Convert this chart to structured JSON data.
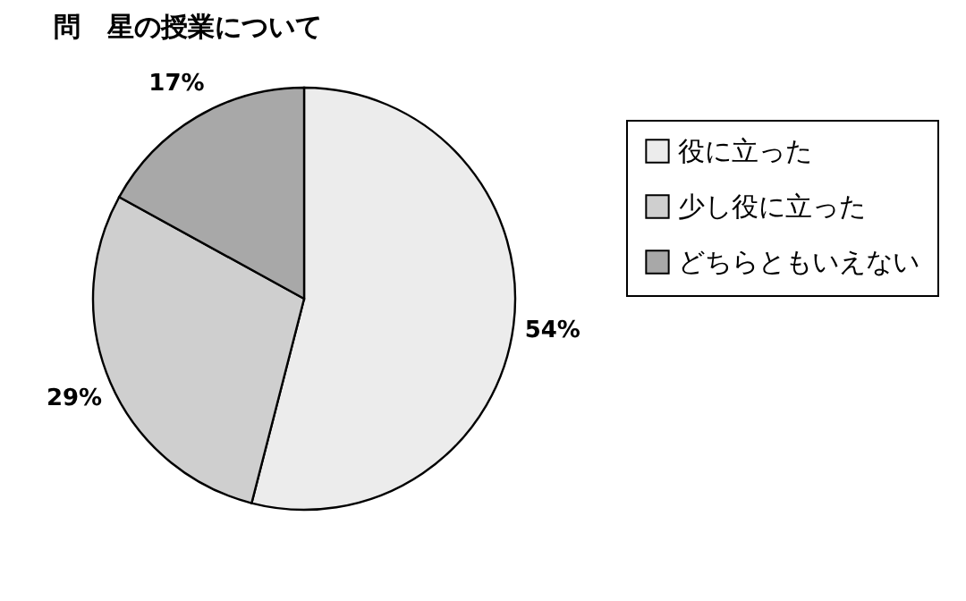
{
  "chart_data": {
    "type": "pie",
    "title": "問　星の授業について",
    "categories": [
      "役に立った",
      "少し役に立った",
      "どちらともいえない"
    ],
    "values": [
      54,
      29,
      17
    ],
    "value_labels": [
      "54%",
      "29%",
      "17%"
    ],
    "colors": [
      "#ececec",
      "#cfcfcf",
      "#a8a8a8"
    ],
    "legend": "right"
  }
}
